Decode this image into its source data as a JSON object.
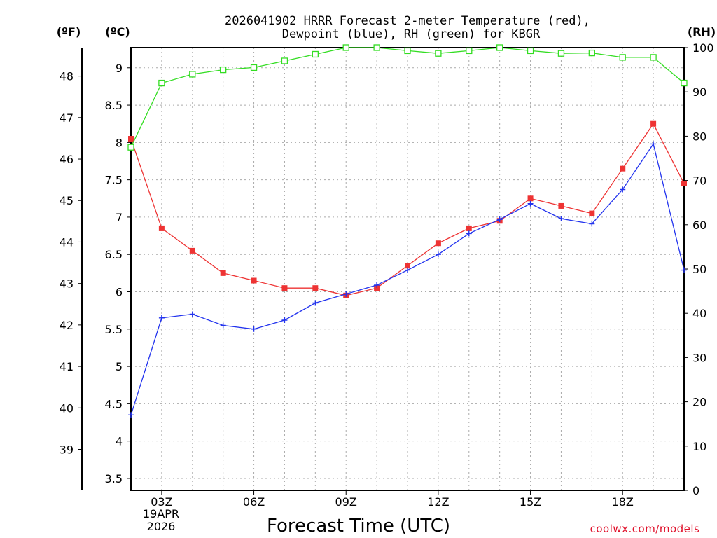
{
  "chart_data": {
    "type": "line",
    "title_line1": "2026041902 HRRR Forecast 2-meter Temperature (red),",
    "title_line2": "Dewpoint (blue), RH (green) for KBGR",
    "units": {
      "left_f": "(ºF)",
      "left_c": "(ºC)",
      "right_rh": "(RH)"
    },
    "xlabel": "Forecast Time (UTC)",
    "credit": "coolwx.com/models",
    "x_range": [
      2,
      20
    ],
    "x_ticks": [
      {
        "x": 3,
        "label": "03Z"
      },
      {
        "x": 6,
        "label": "06Z"
      },
      {
        "x": 9,
        "label": "09Z"
      },
      {
        "x": 12,
        "label": "12Z"
      },
      {
        "x": 15,
        "label": "15Z"
      },
      {
        "x": 18,
        "label": "18Z"
      }
    ],
    "date_line1": "19APR",
    "date_line2": "2026",
    "c_range": [
      3.34,
      9.27
    ],
    "c_ticks": [
      "3.5",
      "4",
      "4.5",
      "5",
      "5.5",
      "6",
      "6.5",
      "7",
      "7.5",
      "8",
      "8.5",
      "9"
    ],
    "f_ticks": [
      "39",
      "40",
      "41",
      "42",
      "43",
      "44",
      "45",
      "46",
      "47",
      "48"
    ],
    "rh_range": [
      0,
      100
    ],
    "rh_ticks": [
      "0",
      "10",
      "20",
      "30",
      "40",
      "50",
      "60",
      "70",
      "80",
      "90",
      "100"
    ],
    "x": [
      2,
      3,
      4,
      5,
      6,
      7,
      8,
      9,
      10,
      11,
      12,
      13,
      14,
      15,
      16,
      17,
      18,
      19,
      20
    ],
    "series": [
      {
        "name": "Temperature",
        "units": "C",
        "color": "#ee3333",
        "marker": "filled-square",
        "values": [
          8.05,
          6.85,
          6.55,
          6.25,
          6.15,
          6.05,
          6.05,
          5.95,
          6.05,
          6.35,
          6.65,
          6.85,
          6.95,
          7.25,
          7.15,
          7.05,
          7.65,
          8.25,
          7.45
        ]
      },
      {
        "name": "Dewpoint",
        "units": "C",
        "color": "#2233ee",
        "marker": "plus",
        "values": [
          4.35,
          5.65,
          5.7,
          5.55,
          5.5,
          5.62,
          5.85,
          5.97,
          6.09,
          6.29,
          6.5,
          6.78,
          6.97,
          7.18,
          6.98,
          6.91,
          7.37,
          7.98,
          6.29
        ]
      },
      {
        "name": "RH",
        "units": "%",
        "color": "#33dd22",
        "marker": "open-square",
        "values": [
          77.5,
          92,
          94,
          95,
          95.5,
          97,
          98.5,
          100,
          100,
          99.3,
          98.7,
          99.3,
          100,
          99.3,
          98.7,
          98.8,
          97.8,
          97.8,
          92
        ]
      }
    ]
  }
}
